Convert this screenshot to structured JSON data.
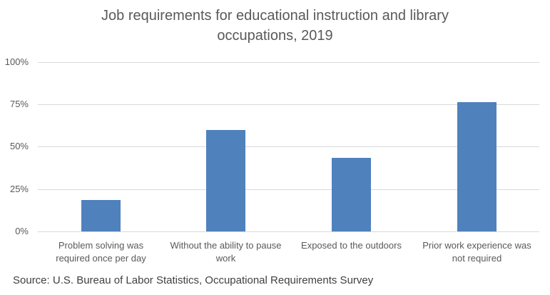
{
  "chart_data": {
    "type": "bar",
    "title": "Job requirements for educational instruction and library occupations, 2019",
    "title_lines": [
      "Job requirements for educational instruction and library",
      "occupations, 2019"
    ],
    "categories": [
      "Problem solving was required once per day",
      "Without the ability to pause work",
      "Exposed to the outdoors",
      "Prior work experience was not required"
    ],
    "category_lines": [
      [
        "Problem solving was",
        "required once per day"
      ],
      [
        "Without the ability to pause",
        "work"
      ],
      [
        "Exposed to the outdoors",
        ""
      ],
      [
        "Prior work experience was",
        "not required"
      ]
    ],
    "values": [
      18.6,
      60.0,
      43.5,
      76.4
    ],
    "xlabel": "",
    "ylabel": "",
    "ylim": [
      0,
      100
    ],
    "yticks": [
      "0%",
      "25%",
      "50%",
      "75%",
      "100%"
    ],
    "grid": true,
    "legend": null,
    "bar_color": "#4f81bd",
    "source": "Source: U.S. Bureau of Labor Statistics, Occupational Requirements Survey"
  }
}
